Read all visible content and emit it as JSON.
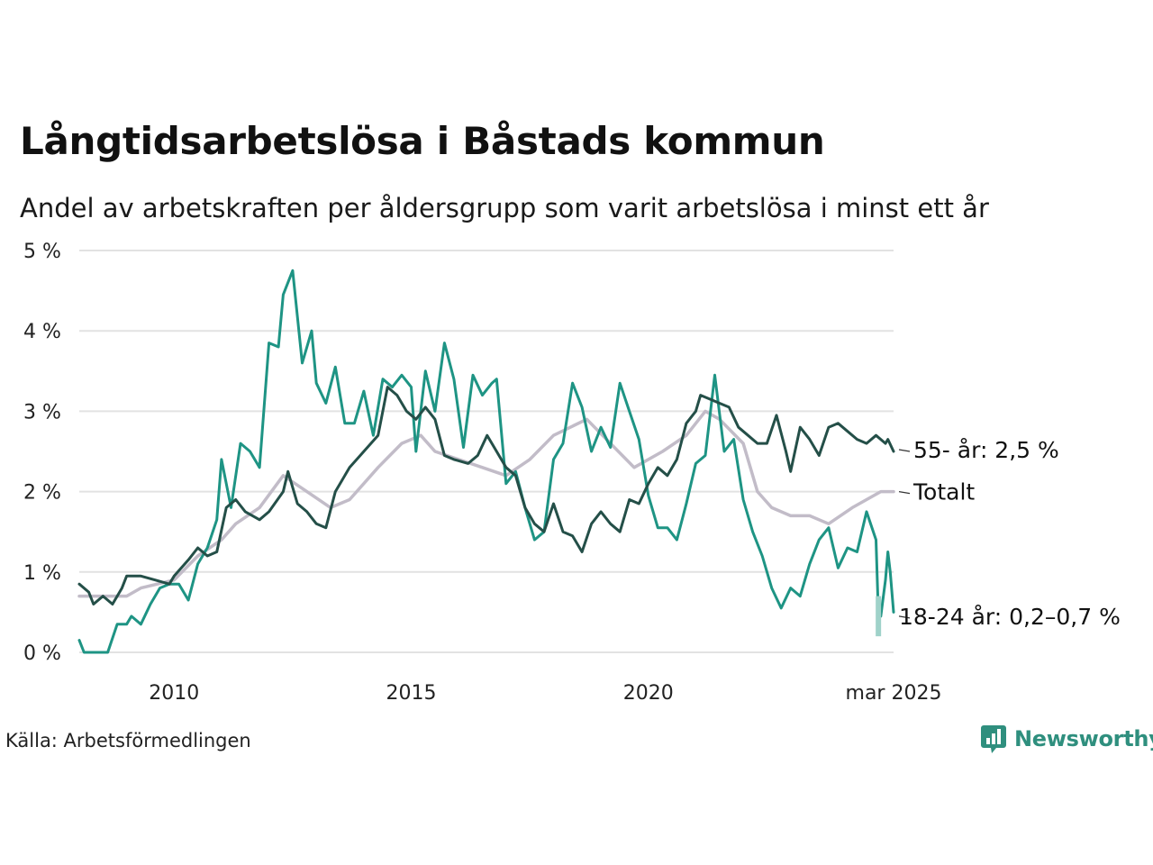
{
  "title": "Långtidsarbetslösa i Båstads kommun",
  "subtitle": "Andel av arbetskraften per åldersgrupp som varit arbetslösa i minst ett år",
  "source": "Källa: Arbetsförmedlingen",
  "brand": {
    "name": "Newsworthy",
    "icon": "newsworthy-logo-icon",
    "color": "#2f8f7e"
  },
  "chart_data": {
    "type": "line",
    "ylim": [
      0,
      5
    ],
    "xlim": [
      2008.0,
      2025.17
    ],
    "yticks": [
      {
        "value": 0,
        "label": "0 %"
      },
      {
        "value": 1,
        "label": "1 %"
      },
      {
        "value": 2,
        "label": "2 %"
      },
      {
        "value": 3,
        "label": "3 %"
      },
      {
        "value": 4,
        "label": "4 %"
      },
      {
        "value": 5,
        "label": "5 %"
      }
    ],
    "xticks": [
      {
        "value": 2010,
        "label": "2010"
      },
      {
        "value": 2015,
        "label": "2015"
      },
      {
        "value": 2020,
        "label": "2020"
      },
      {
        "value": 2025.17,
        "label": "mar 2025"
      }
    ],
    "grid": true,
    "series": [
      {
        "name": "Totalt",
        "label": "Totalt",
        "color": "#c2bcc8",
        "points": [
          [
            2008.0,
            0.7
          ],
          [
            2009.0,
            0.7
          ],
          [
            2009.3,
            0.8
          ],
          [
            2010.0,
            0.9
          ],
          [
            2010.5,
            1.2
          ],
          [
            2011.0,
            1.4
          ],
          [
            2011.3,
            1.6
          ],
          [
            2011.8,
            1.8
          ],
          [
            2012.3,
            2.2
          ],
          [
            2012.8,
            2.0
          ],
          [
            2013.3,
            1.8
          ],
          [
            2013.7,
            1.9
          ],
          [
            2014.3,
            2.3
          ],
          [
            2014.8,
            2.6
          ],
          [
            2015.2,
            2.7
          ],
          [
            2015.5,
            2.5
          ],
          [
            2016.0,
            2.4
          ],
          [
            2016.5,
            2.3
          ],
          [
            2017.0,
            2.2
          ],
          [
            2017.5,
            2.4
          ],
          [
            2018.0,
            2.7
          ],
          [
            2018.7,
            2.9
          ],
          [
            2019.2,
            2.6
          ],
          [
            2019.7,
            2.3
          ],
          [
            2020.3,
            2.5
          ],
          [
            2020.8,
            2.7
          ],
          [
            2021.2,
            3.0
          ],
          [
            2021.5,
            2.9
          ],
          [
            2022.0,
            2.6
          ],
          [
            2022.3,
            2.0
          ],
          [
            2022.6,
            1.8
          ],
          [
            2023.0,
            1.7
          ],
          [
            2023.4,
            1.7
          ],
          [
            2023.8,
            1.6
          ],
          [
            2024.3,
            1.8
          ],
          [
            2024.6,
            1.9
          ],
          [
            2024.9,
            2.0
          ],
          [
            2025.17,
            2.0
          ]
        ]
      },
      {
        "name": "55- år",
        "label": "55- år: 2,5 %",
        "color": "#244f48",
        "points": [
          [
            2008.0,
            0.85
          ],
          [
            2008.2,
            0.75
          ],
          [
            2008.3,
            0.6
          ],
          [
            2008.5,
            0.7
          ],
          [
            2008.7,
            0.6
          ],
          [
            2008.9,
            0.8
          ],
          [
            2009.0,
            0.95
          ],
          [
            2009.3,
            0.95
          ],
          [
            2009.6,
            0.9
          ],
          [
            2009.9,
            0.85
          ],
          [
            2010.0,
            0.95
          ],
          [
            2010.3,
            1.15
          ],
          [
            2010.5,
            1.3
          ],
          [
            2010.7,
            1.2
          ],
          [
            2010.9,
            1.25
          ],
          [
            2011.1,
            1.8
          ],
          [
            2011.3,
            1.9
          ],
          [
            2011.5,
            1.75
          ],
          [
            2011.8,
            1.65
          ],
          [
            2012.0,
            1.75
          ],
          [
            2012.3,
            2.0
          ],
          [
            2012.4,
            2.25
          ],
          [
            2012.6,
            1.85
          ],
          [
            2012.8,
            1.75
          ],
          [
            2013.0,
            1.6
          ],
          [
            2013.2,
            1.55
          ],
          [
            2013.4,
            2.0
          ],
          [
            2013.7,
            2.3
          ],
          [
            2014.0,
            2.5
          ],
          [
            2014.3,
            2.7
          ],
          [
            2014.5,
            3.3
          ],
          [
            2014.7,
            3.2
          ],
          [
            2014.9,
            3.0
          ],
          [
            2015.1,
            2.9
          ],
          [
            2015.3,
            3.05
          ],
          [
            2015.5,
            2.9
          ],
          [
            2015.7,
            2.45
          ],
          [
            2015.9,
            2.4
          ],
          [
            2016.2,
            2.35
          ],
          [
            2016.4,
            2.45
          ],
          [
            2016.6,
            2.7
          ],
          [
            2016.8,
            2.5
          ],
          [
            2017.0,
            2.3
          ],
          [
            2017.2,
            2.2
          ],
          [
            2017.4,
            1.8
          ],
          [
            2017.6,
            1.6
          ],
          [
            2017.8,
            1.5
          ],
          [
            2018.0,
            1.85
          ],
          [
            2018.2,
            1.5
          ],
          [
            2018.4,
            1.45
          ],
          [
            2018.6,
            1.25
          ],
          [
            2018.8,
            1.6
          ],
          [
            2019.0,
            1.75
          ],
          [
            2019.2,
            1.6
          ],
          [
            2019.4,
            1.5
          ],
          [
            2019.6,
            1.9
          ],
          [
            2019.8,
            1.85
          ],
          [
            2020.0,
            2.1
          ],
          [
            2020.2,
            2.3
          ],
          [
            2020.4,
            2.2
          ],
          [
            2020.6,
            2.4
          ],
          [
            2020.8,
            2.85
          ],
          [
            2021.0,
            3.0
          ],
          [
            2021.1,
            3.2
          ],
          [
            2021.3,
            3.15
          ],
          [
            2021.5,
            3.1
          ],
          [
            2021.7,
            3.05
          ],
          [
            2021.9,
            2.8
          ],
          [
            2022.1,
            2.7
          ],
          [
            2022.3,
            2.6
          ],
          [
            2022.5,
            2.6
          ],
          [
            2022.7,
            2.95
          ],
          [
            2022.9,
            2.5
          ],
          [
            2023.0,
            2.25
          ],
          [
            2023.2,
            2.8
          ],
          [
            2023.4,
            2.65
          ],
          [
            2023.6,
            2.45
          ],
          [
            2023.8,
            2.8
          ],
          [
            2024.0,
            2.85
          ],
          [
            2024.2,
            2.75
          ],
          [
            2024.4,
            2.65
          ],
          [
            2024.6,
            2.6
          ],
          [
            2024.8,
            2.7
          ],
          [
            2025.0,
            2.6
          ],
          [
            2025.05,
            2.65
          ],
          [
            2025.17,
            2.5
          ]
        ]
      },
      {
        "name": "18-24 år",
        "label": "18-24 år: 0,2–0,7 %",
        "color": "#1e9484",
        "points": [
          [
            2008.0,
            0.15
          ],
          [
            2008.1,
            0.0
          ],
          [
            2008.5,
            0.0
          ],
          [
            2008.6,
            0.0
          ],
          [
            2008.8,
            0.35
          ],
          [
            2009.0,
            0.35
          ],
          [
            2009.1,
            0.45
          ],
          [
            2009.3,
            0.35
          ],
          [
            2009.5,
            0.6
          ],
          [
            2009.7,
            0.8
          ],
          [
            2009.9,
            0.85
          ],
          [
            2010.1,
            0.85
          ],
          [
            2010.3,
            0.65
          ],
          [
            2010.5,
            1.1
          ],
          [
            2010.7,
            1.3
          ],
          [
            2010.9,
            1.65
          ],
          [
            2011.0,
            2.4
          ],
          [
            2011.2,
            1.8
          ],
          [
            2011.4,
            2.6
          ],
          [
            2011.6,
            2.5
          ],
          [
            2011.8,
            2.3
          ],
          [
            2012.0,
            3.85
          ],
          [
            2012.2,
            3.8
          ],
          [
            2012.3,
            4.45
          ],
          [
            2012.5,
            4.75
          ],
          [
            2012.7,
            3.6
          ],
          [
            2012.9,
            4.0
          ],
          [
            2013.0,
            3.35
          ],
          [
            2013.2,
            3.1
          ],
          [
            2013.4,
            3.55
          ],
          [
            2013.6,
            2.85
          ],
          [
            2013.8,
            2.85
          ],
          [
            2014.0,
            3.25
          ],
          [
            2014.2,
            2.7
          ],
          [
            2014.4,
            3.4
          ],
          [
            2014.6,
            3.3
          ],
          [
            2014.8,
            3.45
          ],
          [
            2015.0,
            3.3
          ],
          [
            2015.1,
            2.5
          ],
          [
            2015.3,
            3.5
          ],
          [
            2015.5,
            3.0
          ],
          [
            2015.7,
            3.85
          ],
          [
            2015.9,
            3.4
          ],
          [
            2016.1,
            2.55
          ],
          [
            2016.3,
            3.45
          ],
          [
            2016.5,
            3.2
          ],
          [
            2016.7,
            3.35
          ],
          [
            2016.8,
            3.4
          ],
          [
            2017.0,
            2.1
          ],
          [
            2017.2,
            2.25
          ],
          [
            2017.4,
            1.8
          ],
          [
            2017.6,
            1.4
          ],
          [
            2017.8,
            1.5
          ],
          [
            2018.0,
            2.4
          ],
          [
            2018.2,
            2.6
          ],
          [
            2018.4,
            3.35
          ],
          [
            2018.6,
            3.05
          ],
          [
            2018.8,
            2.5
          ],
          [
            2019.0,
            2.8
          ],
          [
            2019.2,
            2.55
          ],
          [
            2019.4,
            3.35
          ],
          [
            2019.6,
            3.0
          ],
          [
            2019.8,
            2.65
          ],
          [
            2020.0,
            1.95
          ],
          [
            2020.2,
            1.55
          ],
          [
            2020.4,
            1.55
          ],
          [
            2020.6,
            1.4
          ],
          [
            2020.8,
            1.85
          ],
          [
            2021.0,
            2.35
          ],
          [
            2021.2,
            2.45
          ],
          [
            2021.4,
            3.45
          ],
          [
            2021.6,
            2.5
          ],
          [
            2021.8,
            2.65
          ],
          [
            2022.0,
            1.9
          ],
          [
            2022.2,
            1.5
          ],
          [
            2022.4,
            1.2
          ],
          [
            2022.6,
            0.8
          ],
          [
            2022.8,
            0.55
          ],
          [
            2023.0,
            0.8
          ],
          [
            2023.2,
            0.7
          ],
          [
            2023.4,
            1.1
          ],
          [
            2023.6,
            1.4
          ],
          [
            2023.8,
            1.55
          ],
          [
            2024.0,
            1.05
          ],
          [
            2024.2,
            1.3
          ],
          [
            2024.4,
            1.25
          ],
          [
            2024.6,
            1.75
          ],
          [
            2024.8,
            1.4
          ],
          [
            2024.85,
            0.45
          ],
          [
            2024.9,
            0.45
          ],
          [
            2025.0,
            0.9
          ],
          [
            2025.05,
            1.25
          ],
          [
            2025.1,
            1.0
          ],
          [
            2025.17,
            0.5
          ]
        ]
      }
    ],
    "range_band": {
      "series": "18-24 år",
      "x": 2024.85,
      "low": 0.2,
      "high": 0.7,
      "color": "#9fd2c9"
    }
  }
}
